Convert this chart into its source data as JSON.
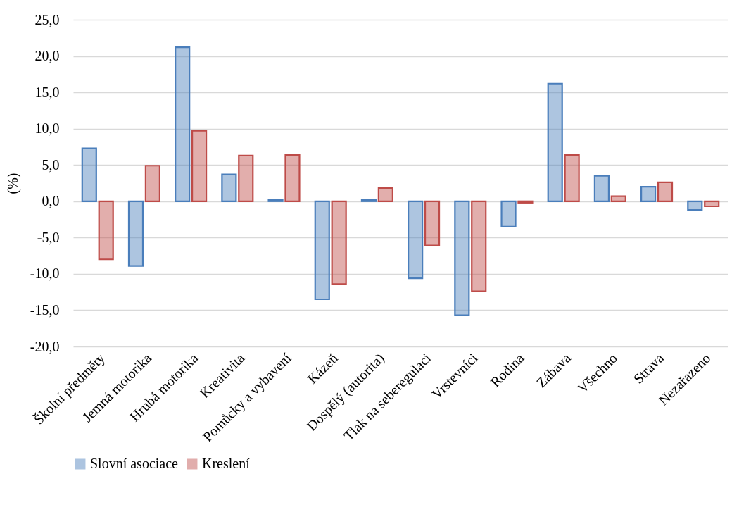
{
  "chart_data": {
    "type": "bar",
    "ylabel": "(%)",
    "categories": [
      "Školní předměty",
      "Jemná motorika",
      "Hrubá motorika",
      "Kreativita",
      "Pomůcky a vybavení",
      "Kázeň",
      "Dospělý (autorita)",
      "Tlak na seberegulaci",
      "Vrstevníci",
      "Rodina",
      "Zábava",
      "Všechno",
      "Strava",
      "Nezařazeno"
    ],
    "series": [
      {
        "name": "Slovní asociace",
        "color": "#4a7ebb",
        "values": [
          7.3,
          -8.9,
          21.2,
          3.7,
          0.2,
          -13.5,
          0.2,
          -10.6,
          -15.7,
          -3.5,
          16.2,
          3.5,
          2.0,
          -1.2
        ]
      },
      {
        "name": "Kreslení",
        "color": "#be4b48",
        "values": [
          -8.0,
          4.9,
          9.7,
          6.3,
          6.4,
          -11.4,
          1.8,
          -6.1,
          -12.4,
          -0.2,
          6.4,
          0.7,
          2.6,
          -0.7
        ]
      }
    ],
    "ylim": [
      -20,
      25
    ],
    "yticks": [
      {
        "value": -20,
        "label": "-20,0"
      },
      {
        "value": -15,
        "label": "-15,0"
      },
      {
        "value": -10,
        "label": "-10,0"
      },
      {
        "value": -5,
        "label": "-5,0"
      },
      {
        "value": 0,
        "label": "0,0"
      },
      {
        "value": 5,
        "label": "5,0"
      },
      {
        "value": 10,
        "label": "10,0"
      },
      {
        "value": 15,
        "label": "15,0"
      },
      {
        "value": 20,
        "label": "20,0"
      },
      {
        "value": 25,
        "label": "25,0"
      }
    ],
    "grid": "y",
    "legend": "bottom"
  }
}
